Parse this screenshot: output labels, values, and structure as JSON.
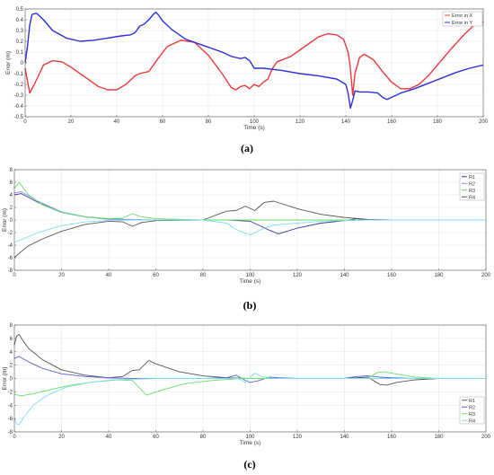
{
  "chart_data": [
    {
      "type": "line",
      "caption": "(a)",
      "xlabel": "Time (s)",
      "ylabel": "Error (m)",
      "xlim": [
        0,
        200
      ],
      "ylim": [
        -0.5,
        0.5
      ],
      "xticks": [
        0,
        20,
        40,
        60,
        80,
        100,
        120,
        140,
        160,
        180,
        200
      ],
      "yticks": [
        -0.5,
        -0.4,
        -0.3,
        -0.2,
        -0.1,
        0,
        0.1,
        0.2,
        0.3,
        0.4,
        0.5
      ],
      "ytick_labels": [
        "-0.5",
        "-0.4",
        "-0.3",
        "-0.2",
        "-0.1",
        "0",
        "0.1",
        "0.2",
        "0.3",
        "0.4",
        "0.5"
      ],
      "grid": true,
      "legend_position": "top-right",
      "series": [
        {
          "name": "Error in X",
          "color": "#e8383d",
          "x": [
            0,
            2,
            4,
            8,
            12,
            16,
            20,
            26,
            32,
            36,
            40,
            44,
            48,
            50,
            54,
            58,
            62,
            68,
            74,
            80,
            86,
            90,
            92,
            94,
            96,
            98,
            100,
            102,
            104,
            106,
            108,
            110,
            116,
            122,
            128,
            132,
            136,
            139,
            141,
            142,
            143,
            144,
            146,
            148,
            152,
            156,
            160,
            164,
            168,
            172,
            176,
            180,
            186,
            192,
            196,
            200
          ],
          "y": [
            -0.05,
            -0.28,
            -0.2,
            -0.02,
            0.02,
            0.01,
            -0.04,
            -0.13,
            -0.22,
            -0.25,
            -0.25,
            -0.2,
            -0.12,
            -0.1,
            -0.08,
            0.04,
            0.15,
            0.21,
            0.19,
            0.07,
            -0.1,
            -0.23,
            -0.25,
            -0.22,
            -0.21,
            -0.24,
            -0.2,
            -0.22,
            -0.18,
            -0.15,
            -0.05,
            0.01,
            0.06,
            0.15,
            0.24,
            0.27,
            0.26,
            0.22,
            0.1,
            -0.05,
            -0.3,
            -0.1,
            0.05,
            0.08,
            0.03,
            -0.08,
            -0.18,
            -0.24,
            -0.24,
            -0.2,
            -0.12,
            -0.02,
            0.13,
            0.27,
            0.35,
            0.38
          ]
        },
        {
          "name": "Error in Y",
          "color": "#2b2fd6",
          "x": [
            0,
            1,
            2,
            3,
            5,
            8,
            12,
            18,
            24,
            30,
            36,
            42,
            46,
            48,
            50,
            52,
            54,
            56,
            57,
            58,
            60,
            64,
            70,
            78,
            86,
            90,
            92,
            94,
            96,
            98,
            100,
            104,
            108,
            112,
            120,
            128,
            136,
            140,
            141,
            142,
            143,
            144,
            146,
            150,
            154,
            156,
            158,
            160,
            164,
            170,
            176,
            182,
            188,
            194,
            200
          ],
          "y": [
            0.0,
            0.15,
            0.35,
            0.45,
            0.46,
            0.4,
            0.3,
            0.23,
            0.2,
            0.21,
            0.23,
            0.25,
            0.26,
            0.28,
            0.34,
            0.36,
            0.4,
            0.45,
            0.47,
            0.45,
            0.39,
            0.31,
            0.22,
            0.16,
            0.1,
            0.06,
            0.05,
            0.04,
            0.05,
            0.02,
            -0.05,
            -0.05,
            -0.06,
            -0.07,
            -0.1,
            -0.12,
            -0.15,
            -0.2,
            -0.28,
            -0.42,
            -0.35,
            -0.26,
            -0.27,
            -0.27,
            -0.28,
            -0.32,
            -0.34,
            -0.32,
            -0.28,
            -0.24,
            -0.19,
            -0.14,
            -0.09,
            -0.05,
            -0.02
          ]
        }
      ]
    },
    {
      "type": "line",
      "caption": "(b)",
      "xlabel": "Time (s)",
      "ylabel": "Error (m)",
      "xlim": [
        0,
        200
      ],
      "ylim": [
        -8,
        8
      ],
      "xticks": [
        0,
        20,
        40,
        60,
        80,
        100,
        120,
        140,
        160,
        180,
        200
      ],
      "yticks": [
        -8,
        -6,
        -4,
        -2,
        0,
        2,
        4,
        6,
        8
      ],
      "ytick_labels": [
        "-8",
        "-6",
        "-4",
        "-2",
        "0",
        "2",
        "4",
        "6",
        "8"
      ],
      "grid": true,
      "legend_position": "top-right",
      "series": [
        {
          "name": "R1",
          "color": "#3a3aa8",
          "x": [
            0,
            3,
            10,
            20,
            30,
            40,
            46,
            50,
            54,
            60,
            80,
            90,
            100,
            108,
            112,
            120,
            130,
            140,
            145,
            150,
            160,
            180,
            200
          ],
          "y": [
            4.0,
            4.2,
            2.8,
            1.2,
            0.5,
            0.2,
            0.1,
            0.0,
            0.0,
            0.0,
            0.0,
            0.0,
            -0.2,
            -1.6,
            -2.2,
            -1.3,
            -0.5,
            -0.1,
            0.2,
            0.05,
            0.0,
            0.0,
            0.0
          ]
        },
        {
          "name": "R2",
          "color": "#8c8cff",
          "x": [
            0,
            3,
            10,
            20,
            30,
            40,
            50,
            60,
            80,
            100,
            120,
            140,
            160,
            180,
            200
          ],
          "y": [
            4.3,
            4.5,
            3.0,
            1.3,
            0.5,
            0.1,
            0.1,
            0.0,
            0.0,
            0.0,
            0.0,
            0.0,
            0.0,
            0.0,
            0.0
          ]
        },
        {
          "name": "R3",
          "color": "#66e066",
          "x": [
            0,
            2,
            6,
            12,
            20,
            30,
            40,
            46,
            50,
            54,
            60,
            70,
            80,
            90,
            100,
            120,
            140,
            160,
            180,
            200
          ],
          "y": [
            5.0,
            6.0,
            4.0,
            2.4,
            1.2,
            0.5,
            0.2,
            0.3,
            1.0,
            0.5,
            0.2,
            0.1,
            0.0,
            0.0,
            0.0,
            0.0,
            0.0,
            0.0,
            0.0,
            0.0
          ]
        },
        {
          "name": "R4",
          "color": "#555555",
          "x": [
            0,
            2,
            6,
            12,
            20,
            30,
            40,
            46,
            50,
            54,
            60,
            80,
            90,
            94,
            98,
            102,
            106,
            110,
            120,
            130,
            140,
            150,
            160,
            180,
            200
          ],
          "y": [
            -6.0,
            -5.3,
            -4.1,
            -3.0,
            -1.8,
            -0.7,
            -0.2,
            -0.3,
            -1.0,
            -0.4,
            -0.1,
            0.0,
            1.4,
            1.5,
            2.2,
            1.5,
            2.8,
            3.0,
            1.8,
            0.9,
            0.4,
            0.1,
            0.0,
            0.0,
            0.0
          ]
        },
        {
          "name": "",
          "color": "#7fdcf0",
          "x": [
            0,
            2,
            10,
            20,
            30,
            40,
            50,
            60,
            80,
            90,
            94,
            98,
            100,
            102,
            106,
            110,
            120,
            130,
            140,
            150,
            160,
            200
          ],
          "y": [
            -3.5,
            -3.3,
            -2.0,
            -0.9,
            -0.3,
            -0.1,
            0.0,
            0.0,
            0.0,
            -0.5,
            -1.5,
            -2.1,
            -2.4,
            -2.0,
            -1.3,
            -0.8,
            -0.5,
            -0.2,
            -0.1,
            0.0,
            0.0,
            0.0
          ]
        }
      ]
    },
    {
      "type": "line",
      "caption": "(c)",
      "xlabel": "Time (s)",
      "ylabel": "Error (m)",
      "xlim": [
        0,
        200
      ],
      "ylim": [
        -8,
        8
      ],
      "xticks": [
        0,
        20,
        40,
        60,
        80,
        100,
        120,
        140,
        160,
        180,
        200
      ],
      "yticks": [
        -8,
        -6,
        -4,
        -2,
        0,
        2,
        4,
        6,
        8
      ],
      "ytick_labels": [
        "-8",
        "-6",
        "-4",
        "-2",
        "0",
        "2",
        "4",
        "6",
        "8"
      ],
      "grid": true,
      "legend_position": "bottom-right",
      "series": [
        {
          "name": "R1",
          "color": "#555555",
          "x": [
            0,
            1,
            2,
            3,
            6,
            12,
            20,
            30,
            40,
            46,
            50,
            53,
            57,
            60,
            70,
            80,
            90,
            100,
            110,
            120,
            140,
            150,
            155,
            158,
            162,
            170,
            180,
            200
          ],
          "y": [
            5.0,
            6.4,
            6.6,
            6.0,
            4.5,
            2.8,
            1.3,
            0.5,
            0.1,
            0.3,
            1.2,
            1.3,
            2.7,
            2.2,
            1.0,
            0.4,
            0.1,
            0.0,
            0.0,
            0.0,
            0.0,
            0.2,
            -0.9,
            -1.0,
            -0.6,
            -0.2,
            0.0,
            0.0
          ]
        },
        {
          "name": "R2",
          "color": "#5b5bd6",
          "x": [
            0,
            2,
            6,
            12,
            20,
            30,
            40,
            50,
            60,
            80,
            90,
            94,
            98,
            100,
            104,
            108,
            112,
            120,
            140,
            145,
            150,
            155,
            160,
            170,
            200
          ],
          "y": [
            3.0,
            3.3,
            2.5,
            1.5,
            0.7,
            0.3,
            0.1,
            0.0,
            0.0,
            0.0,
            0.1,
            0.5,
            -0.3,
            -0.6,
            -0.3,
            0.2,
            0.1,
            0.0,
            0.0,
            0.3,
            0.4,
            0.2,
            0.1,
            0.0,
            0.0
          ]
        },
        {
          "name": "R3",
          "color": "#66e066",
          "x": [
            0,
            3,
            8,
            16,
            24,
            34,
            44,
            50,
            56,
            62,
            72,
            84,
            96,
            110,
            130,
            150,
            154,
            157,
            160,
            170,
            180,
            200
          ],
          "y": [
            -2.4,
            -2.6,
            -2.3,
            -1.6,
            -1.0,
            -0.5,
            -0.2,
            -0.3,
            -2.5,
            -1.8,
            -0.8,
            -0.3,
            0.0,
            0.0,
            0.0,
            0.0,
            0.9,
            1.0,
            0.8,
            0.2,
            0.0,
            0.0
          ]
        },
        {
          "name": "R4",
          "color": "#7fdcf0",
          "x": [
            0,
            1,
            2,
            4,
            8,
            14,
            22,
            32,
            42,
            50,
            60,
            80,
            95,
            98,
            100,
            102,
            105,
            110,
            120,
            140,
            160,
            180,
            200
          ],
          "y": [
            -6.0,
            -6.8,
            -6.9,
            -5.8,
            -4.0,
            -2.5,
            -1.3,
            -0.6,
            -0.2,
            -0.1,
            0.0,
            0.0,
            0.0,
            -0.6,
            0.2,
            0.8,
            0.3,
            0.0,
            0.0,
            0.0,
            0.0,
            0.0,
            0.0
          ]
        }
      ]
    }
  ]
}
